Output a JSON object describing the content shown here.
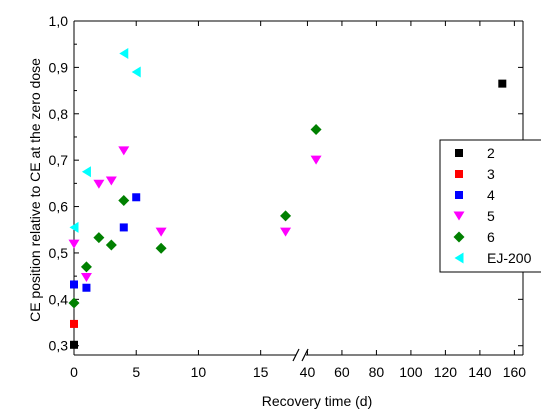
{
  "chart_data": {
    "type": "scatter",
    "title": "",
    "xlabel": "Recovery time (d)",
    "ylabel": "CE position relative to CE at the zero dose",
    "ylim": [
      0.28,
      1.0
    ],
    "y_ticks": [
      "0,3",
      "0,4",
      "0,5",
      "0,6",
      "0,7",
      "0,8",
      "0,9",
      "1,0"
    ],
    "x_axis": {
      "broken": true,
      "segment1": {
        "range": [
          0,
          18
        ],
        "ticks": [
          "0",
          "5",
          "10",
          "15"
        ]
      },
      "segment2": {
        "range": [
          38,
          165
        ],
        "ticks": [
          "40",
          "60",
          "80",
          "100",
          "120",
          "140",
          "160"
        ]
      }
    },
    "legend_position": "right",
    "grid": false,
    "series": [
      {
        "name": "2",
        "color": "#000000",
        "marker": "square",
        "points": [
          [
            0,
            0.302
          ],
          [
            153,
            0.865
          ]
        ]
      },
      {
        "name": "3",
        "color": "#ff0000",
        "marker": "square",
        "points": [
          [
            0,
            0.347
          ]
        ]
      },
      {
        "name": "4",
        "color": "#0000ff",
        "marker": "square",
        "points": [
          [
            0,
            0.432
          ],
          [
            1,
            0.425
          ],
          [
            4,
            0.555
          ],
          [
            5,
            0.62
          ]
        ]
      },
      {
        "name": "5",
        "color": "#ff00ff",
        "marker": "triangle-down",
        "points": [
          [
            0,
            0.519
          ],
          [
            1,
            0.447
          ],
          [
            2,
            0.648
          ],
          [
            3,
            0.655
          ],
          [
            4,
            0.72
          ],
          [
            7,
            0.545
          ],
          [
            17,
            0.545
          ],
          [
            45,
            0.7
          ]
        ]
      },
      {
        "name": "6",
        "color": "#008000",
        "marker": "diamond",
        "points": [
          [
            0,
            0.392
          ],
          [
            1,
            0.47
          ],
          [
            2,
            0.533
          ],
          [
            3,
            0.517
          ],
          [
            4,
            0.613
          ],
          [
            7,
            0.51
          ],
          [
            17,
            0.58
          ],
          [
            45,
            0.766
          ]
        ]
      },
      {
        "name": "EJ-200",
        "color": "#00ffff",
        "marker": "triangle-left",
        "points": [
          [
            0,
            0.555
          ],
          [
            1,
            0.675
          ],
          [
            4,
            0.93
          ],
          [
            5,
            0.89
          ]
        ]
      }
    ]
  }
}
